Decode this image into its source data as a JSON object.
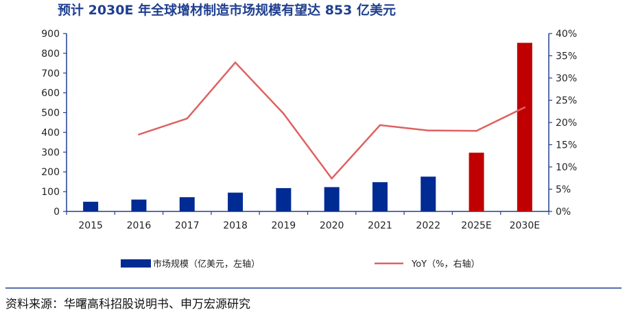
{
  "chart_data": {
    "type": "bar",
    "title": "预计 2030E 年全球增材制造市场规模有望达 853 亿美元",
    "categories": [
      "2015",
      "2016",
      "2017",
      "2018",
      "2019",
      "2020",
      "2021",
      "2022",
      "2025E",
      "2030E"
    ],
    "series": [
      {
        "name": "市场规模（亿美元，左轴）",
        "type": "bar",
        "axis": "left",
        "values": [
          49,
          60,
          72,
          95,
          118,
          123,
          148,
          176,
          297,
          853
        ],
        "colors": [
          "#002b93",
          "#002b93",
          "#002b93",
          "#002b93",
          "#002b93",
          "#002b93",
          "#002b93",
          "#002b93",
          "#c00000",
          "#c00000"
        ]
      },
      {
        "name": "YoY（%，右轴）",
        "type": "line",
        "axis": "right",
        "color": "#e06060",
        "values": [
          null,
          17.3,
          20.9,
          33.5,
          22.0,
          7.4,
          19.4,
          18.2,
          18.1,
          23.4
        ]
      }
    ],
    "y_left": {
      "min": 0,
      "max": 900,
      "ticks": [
        "0",
        "100",
        "200",
        "300",
        "400",
        "500",
        "600",
        "700",
        "800",
        "900"
      ]
    },
    "y_right": {
      "min": 0,
      "max": 40,
      "ticks": [
        "0%",
        "5%",
        "10%",
        "15%",
        "20%",
        "25%",
        "30%",
        "35%",
        "40%"
      ]
    },
    "grid": false,
    "legend": "bottom"
  },
  "source": "资料来源：华曙高科招股说明书、申万宏源研究"
}
